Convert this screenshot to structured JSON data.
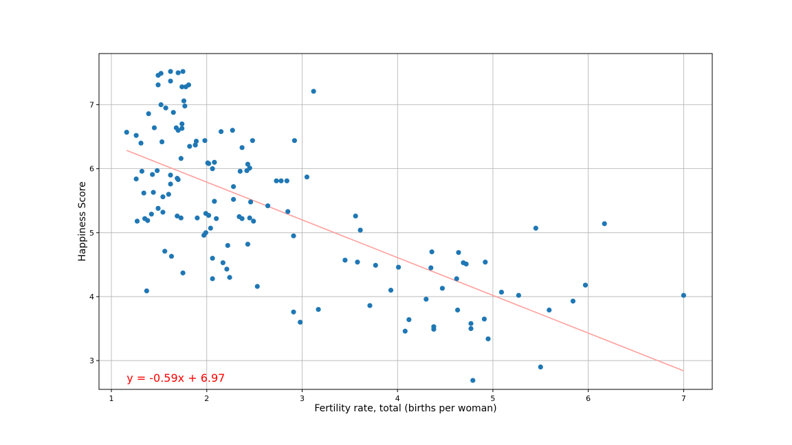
{
  "chart_data": {
    "type": "scatter",
    "title": "",
    "xlabel": "Fertility rate, total (births per woman)",
    "ylabel": "Happiness Score",
    "xlim": [
      0.87,
      7.3
    ],
    "ylim": [
      2.55,
      7.8
    ],
    "xticks": [
      1,
      2,
      3,
      4,
      5,
      6,
      7
    ],
    "yticks": [
      3,
      4,
      5,
      6,
      7
    ],
    "grid": true,
    "colors": {
      "points": "#1f77b4",
      "fit_line": "#ff9f9b",
      "annotation": "#ff0000",
      "grid": "#b0b0b0"
    },
    "fit": {
      "slope": -0.59,
      "intercept": 6.97,
      "x_range": [
        1.16,
        7.0
      ]
    },
    "annotation": {
      "text": "y = -0.59x + 6.97",
      "x": 1.16,
      "y": 2.72
    },
    "points": [
      [
        1.52,
        7.49
      ],
      [
        1.49,
        7.46
      ],
      [
        1.62,
        7.52
      ],
      [
        1.7,
        7.5
      ],
      [
        1.75,
        7.52
      ],
      [
        1.49,
        7.31
      ],
      [
        1.62,
        7.37
      ],
      [
        1.74,
        7.28
      ],
      [
        1.78,
        7.28
      ],
      [
        1.81,
        7.31
      ],
      [
        3.12,
        7.21
      ],
      [
        1.52,
        7.0
      ],
      [
        1.57,
        6.95
      ],
      [
        1.65,
        6.88
      ],
      [
        1.76,
        7.06
      ],
      [
        1.77,
        6.98
      ],
      [
        1.39,
        6.86
      ],
      [
        1.16,
        6.57
      ],
      [
        1.26,
        6.52
      ],
      [
        1.31,
        6.4
      ],
      [
        1.45,
        6.64
      ],
      [
        1.53,
        6.42
      ],
      [
        1.68,
        6.64
      ],
      [
        1.7,
        6.6
      ],
      [
        1.74,
        6.63
      ],
      [
        1.74,
        6.7
      ],
      [
        1.82,
        6.35
      ],
      [
        1.88,
        6.37
      ],
      [
        1.89,
        6.43
      ],
      [
        1.98,
        6.44
      ],
      [
        2.15,
        6.58
      ],
      [
        2.27,
        6.6
      ],
      [
        2.37,
        6.33
      ],
      [
        2.48,
        6.44
      ],
      [
        2.92,
        6.44
      ],
      [
        1.32,
        5.96
      ],
      [
        1.43,
        5.91
      ],
      [
        1.48,
        5.97
      ],
      [
        1.73,
        6.16
      ],
      [
        2.01,
        6.09
      ],
      [
        2.02,
        6.08
      ],
      [
        2.06,
        6.0
      ],
      [
        2.08,
        6.1
      ],
      [
        2.35,
        5.96
      ],
      [
        2.42,
        5.97
      ],
      [
        2.43,
        6.07
      ],
      [
        2.45,
        6.01
      ],
      [
        1.26,
        5.84
      ],
      [
        1.62,
        5.9
      ],
      [
        1.69,
        5.85
      ],
      [
        1.7,
        5.83
      ],
      [
        1.62,
        5.76
      ],
      [
        1.34,
        5.62
      ],
      [
        1.44,
        5.63
      ],
      [
        1.54,
        5.56
      ],
      [
        1.6,
        5.6
      ],
      [
        2.28,
        5.72
      ],
      [
        2.73,
        5.81
      ],
      [
        2.78,
        5.81
      ],
      [
        2.84,
        5.81
      ],
      [
        3.05,
        5.87
      ],
      [
        2.08,
        5.49
      ],
      [
        2.28,
        5.52
      ],
      [
        2.46,
        5.48
      ],
      [
        2.64,
        5.42
      ],
      [
        1.49,
        5.38
      ],
      [
        1.54,
        5.32
      ],
      [
        1.27,
        5.18
      ],
      [
        1.35,
        5.22
      ],
      [
        1.38,
        5.19
      ],
      [
        1.42,
        5.29
      ],
      [
        1.69,
        5.26
      ],
      [
        1.73,
        5.23
      ],
      [
        1.9,
        5.23
      ],
      [
        1.99,
        5.3
      ],
      [
        2.02,
        5.27
      ],
      [
        2.1,
        5.22
      ],
      [
        2.34,
        5.25
      ],
      [
        2.37,
        5.22
      ],
      [
        2.45,
        5.23
      ],
      [
        2.49,
        5.18
      ],
      [
        2.85,
        5.33
      ],
      [
        3.56,
        5.26
      ],
      [
        2.04,
        5.07
      ],
      [
        1.97,
        4.96
      ],
      [
        1.99,
        5.0
      ],
      [
        2.91,
        4.95
      ],
      [
        3.61,
        5.04
      ],
      [
        2.22,
        4.8
      ],
      [
        2.43,
        4.82
      ],
      [
        1.56,
        4.71
      ],
      [
        1.63,
        4.63
      ],
      [
        2.06,
        4.6
      ],
      [
        2.17,
        4.53
      ],
      [
        2.21,
        4.43
      ],
      [
        1.75,
        4.37
      ],
      [
        2.06,
        4.28
      ],
      [
        2.24,
        4.3
      ],
      [
        2.53,
        4.16
      ],
      [
        1.37,
        4.09
      ],
      [
        3.45,
        4.57
      ],
      [
        3.58,
        4.54
      ],
      [
        3.77,
        4.49
      ],
      [
        4.01,
        4.46
      ],
      [
        4.36,
        4.7
      ],
      [
        4.35,
        4.45
      ],
      [
        4.64,
        4.69
      ],
      [
        4.69,
        4.53
      ],
      [
        4.72,
        4.51
      ],
      [
        4.92,
        4.54
      ],
      [
        4.62,
        4.28
      ],
      [
        4.47,
        4.13
      ],
      [
        3.93,
        4.1
      ],
      [
        3.71,
        3.86
      ],
      [
        4.3,
        3.96
      ],
      [
        5.09,
        4.07
      ],
      [
        5.27,
        4.02
      ],
      [
        5.45,
        5.07
      ],
      [
        5.97,
        4.18
      ],
      [
        6.17,
        5.14
      ],
      [
        5.84,
        3.93
      ],
      [
        7.0,
        4.02
      ],
      [
        5.59,
        3.79
      ],
      [
        4.63,
        3.79
      ],
      [
        4.91,
        3.65
      ],
      [
        4.12,
        3.64
      ],
      [
        4.77,
        3.58
      ],
      [
        4.77,
        3.5
      ],
      [
        4.38,
        3.53
      ],
      [
        4.38,
        3.49
      ],
      [
        4.08,
        3.46
      ],
      [
        4.95,
        3.34
      ],
      [
        2.91,
        3.76
      ],
      [
        3.17,
        3.8
      ],
      [
        2.98,
        3.6
      ],
      [
        5.5,
        2.9
      ],
      [
        4.79,
        2.69
      ]
    ]
  }
}
